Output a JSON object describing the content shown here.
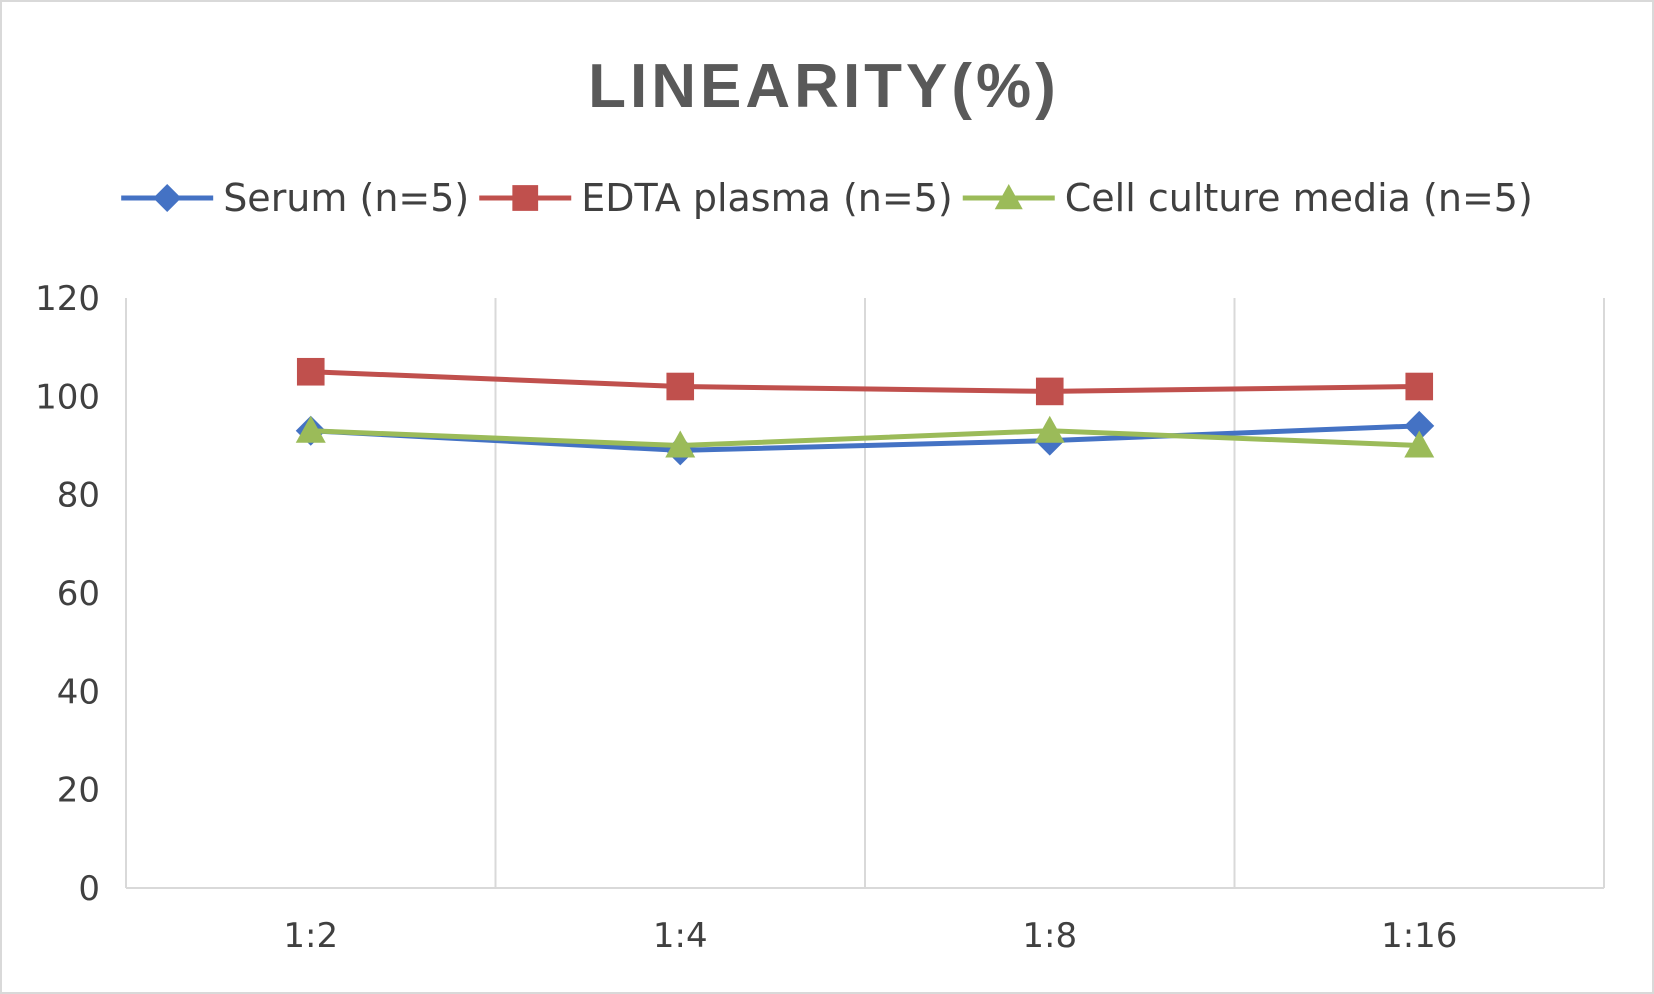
{
  "chart_data": {
    "type": "line",
    "title": "LINEARITY(%)",
    "xlabel": "",
    "ylabel": "",
    "categories": [
      "1:2",
      "1:4",
      "1:8",
      "1:16"
    ],
    "ylim": [
      0,
      120
    ],
    "yticks": [
      0,
      20,
      40,
      60,
      80,
      100,
      120
    ],
    "grid": "vertical",
    "legend_position": "top",
    "series": [
      {
        "name": "Serum (n=5)",
        "values": [
          93,
          89,
          91,
          94
        ],
        "color": "#4472c4",
        "marker": "diamond"
      },
      {
        "name": "EDTA plasma (n=5)",
        "values": [
          105,
          102,
          101,
          102
        ],
        "color": "#c0504d",
        "marker": "square"
      },
      {
        "name": "Cell culture media (n=5)",
        "values": [
          93,
          90,
          93,
          90
        ],
        "color": "#9bbb59",
        "marker": "triangle"
      }
    ]
  }
}
